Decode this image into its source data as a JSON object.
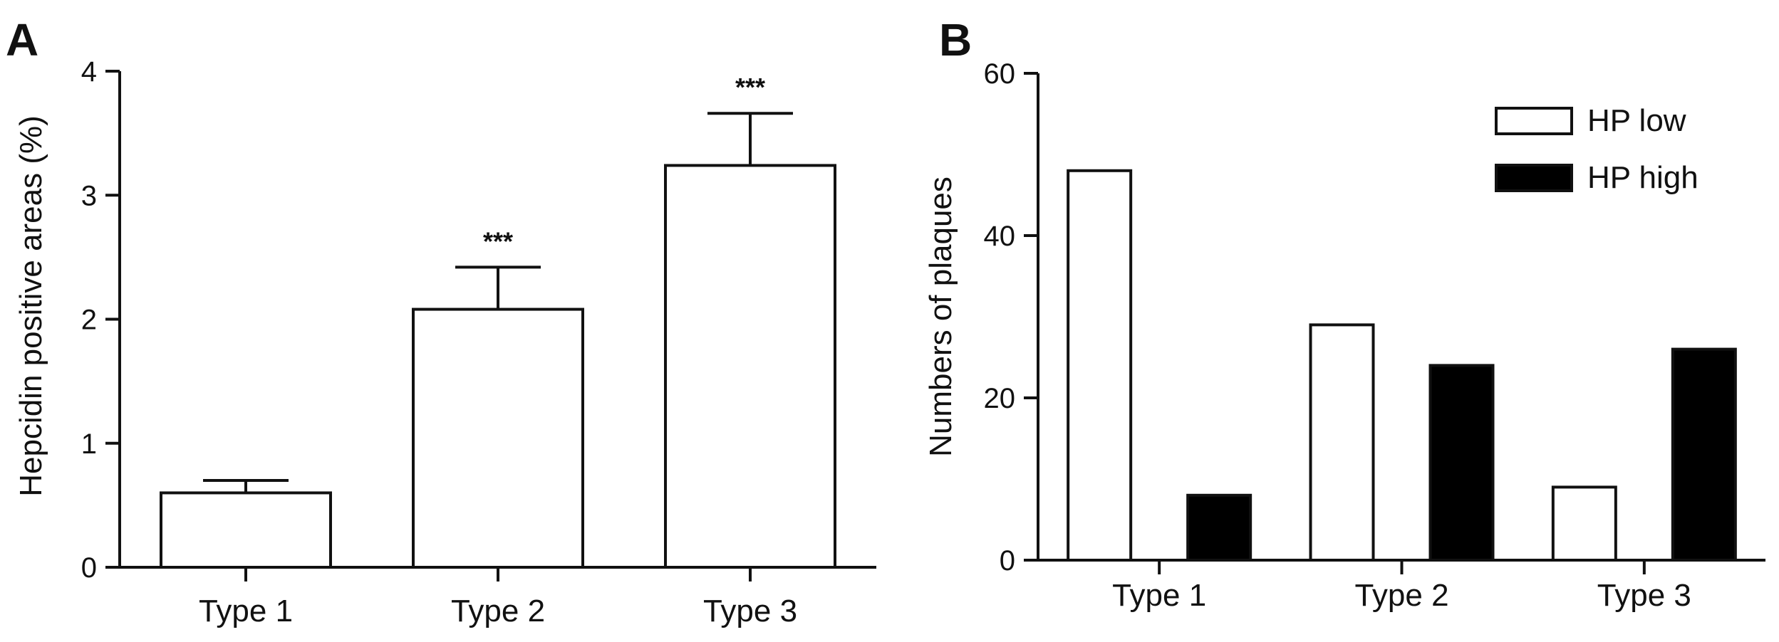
{
  "colors": {
    "axis": "#111111",
    "bar_fill_white": "#ffffff",
    "bar_fill_black": "#000000",
    "background": "#ffffff"
  },
  "chart_data": [
    {
      "panel": "A",
      "type": "bar",
      "categories": [
        "Type 1",
        "Type 2",
        "Type 3"
      ],
      "values": [
        0.6,
        2.08,
        3.24
      ],
      "error_upper": [
        0.1,
        0.34,
        0.42
      ],
      "annotations": [
        "",
        "***",
        "***"
      ],
      "ylabel": "Hepcidin positive areas (%)",
      "xlabel": "",
      "ylim": [
        0,
        4
      ],
      "yticks": [
        "0",
        "1",
        "2",
        "3",
        "4"
      ],
      "grid": false,
      "bar_fill": "#ffffff"
    },
    {
      "panel": "B",
      "type": "bar",
      "categories": [
        "Type 1",
        "Type 2",
        "Type 3"
      ],
      "series": [
        {
          "name": "HP low",
          "values": [
            48,
            29,
            9
          ],
          "fill": "#ffffff"
        },
        {
          "name": "HP high",
          "values": [
            8,
            24,
            26
          ],
          "fill": "#000000"
        }
      ],
      "ylabel": "Numbers of plaques",
      "xlabel": "",
      "ylim": [
        0,
        60
      ],
      "yticks": [
        "0",
        "20",
        "40",
        "60"
      ],
      "legend_position": "top-right",
      "grid": false
    }
  ]
}
